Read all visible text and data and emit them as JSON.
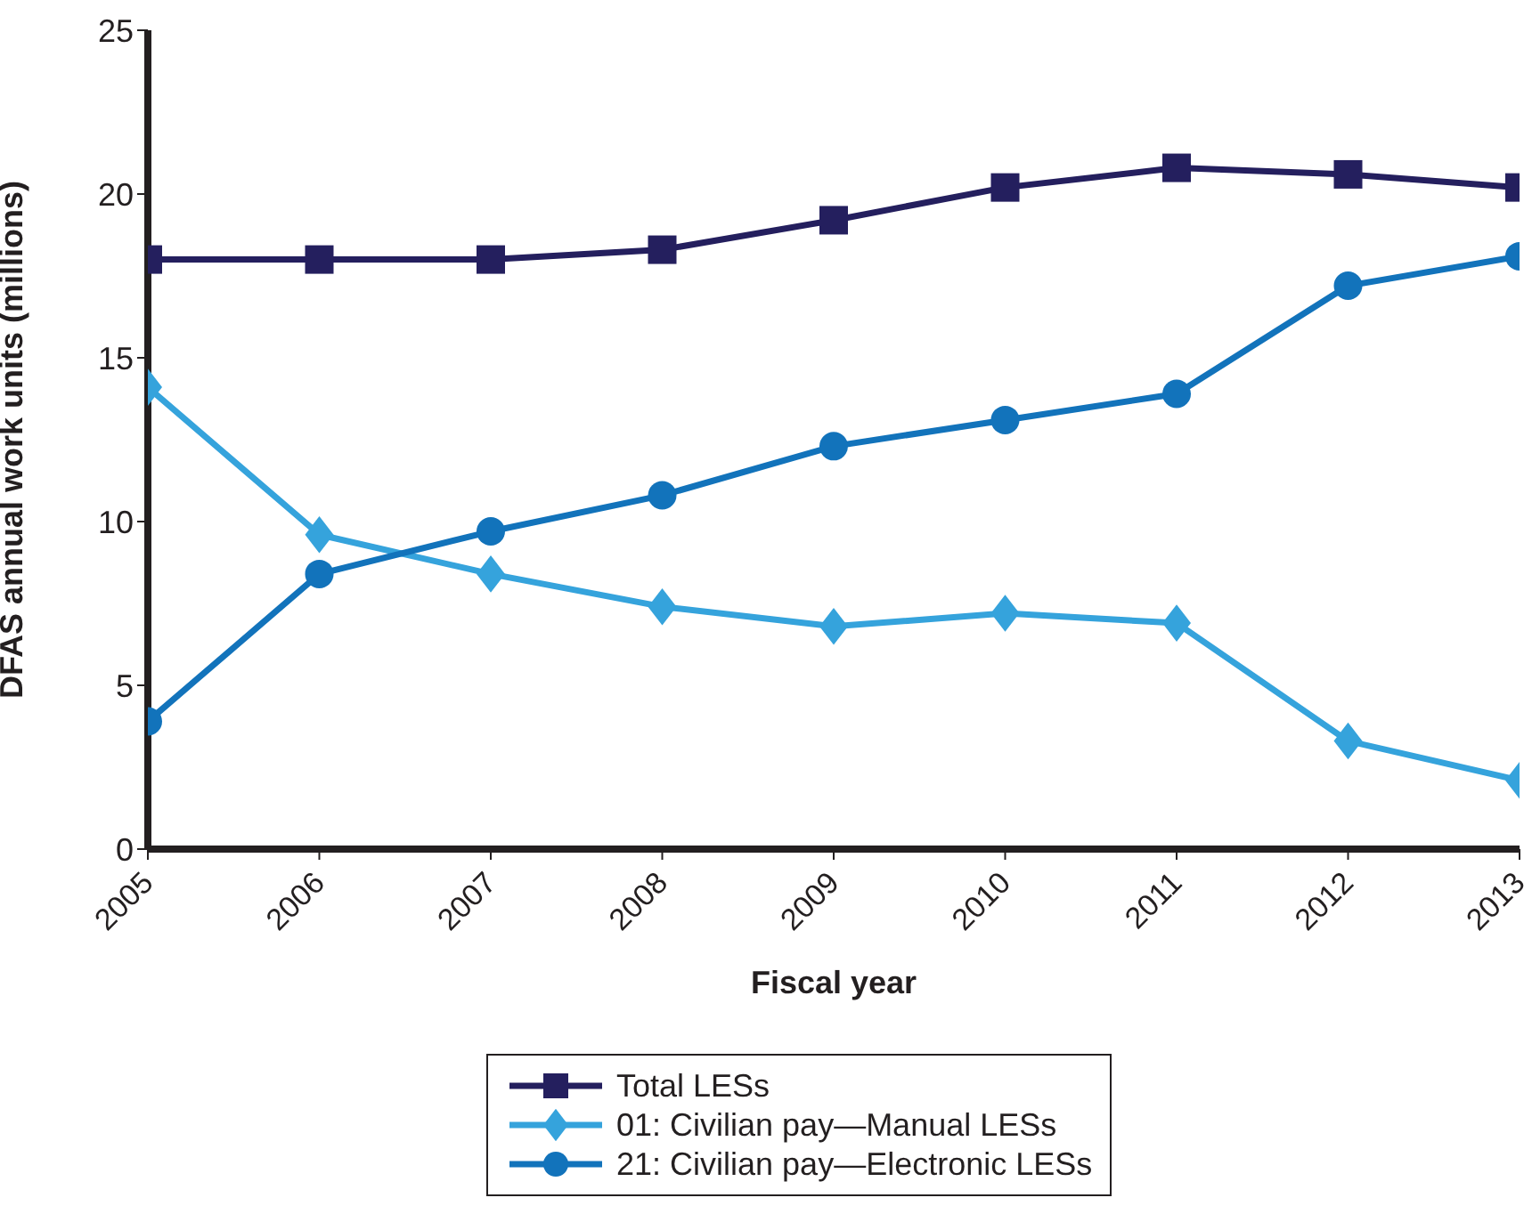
{
  "chart_data": {
    "type": "line",
    "xlabel": "Fiscal year",
    "ylabel": "DFAS annual work units (millions)",
    "x": [
      2005,
      2006,
      2007,
      2008,
      2009,
      2010,
      2011,
      2012,
      2013
    ],
    "xlim": [
      2005,
      2013
    ],
    "xticks": [
      2005,
      2006,
      2007,
      2008,
      2009,
      2010,
      2011,
      2012,
      2013
    ],
    "ylim": [
      0,
      25
    ],
    "yticks": [
      0,
      5,
      10,
      15,
      20,
      25
    ],
    "legend": "bottom",
    "line_style": "solid",
    "series": [
      {
        "name": "Total LESs",
        "color": "#241f5e",
        "marker": "square",
        "values": [
          18.0,
          18.0,
          18.0,
          18.3,
          19.2,
          20.2,
          20.8,
          20.6,
          20.2
        ]
      },
      {
        "name": "01: Civilian pay—Manual LESs",
        "color": "#35a3dc",
        "marker": "diamond",
        "values": [
          14.1,
          9.6,
          8.4,
          7.4,
          6.8,
          7.2,
          6.9,
          3.3,
          2.1
        ]
      },
      {
        "name": "21: Civilian pay—Electronic LESs",
        "color": "#1273bb",
        "marker": "circle",
        "values": [
          3.9,
          8.4,
          9.7,
          10.8,
          12.3,
          13.1,
          13.9,
          17.2,
          18.1
        ]
      }
    ]
  }
}
